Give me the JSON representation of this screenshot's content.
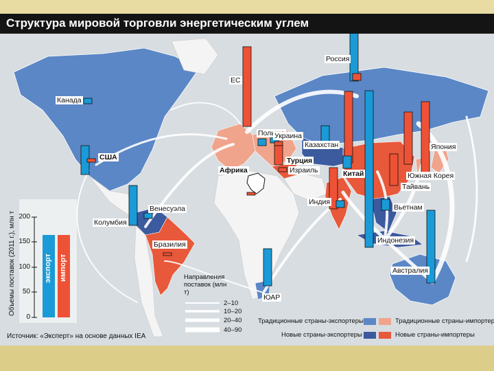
{
  "title": "Структура мировой торговли энергетическим углем",
  "map_labels": {
    "canada": "Канада",
    "usa": "США",
    "venezuela": "Венесуэла",
    "colombia": "Колумбия",
    "brazil": "Бразилия",
    "eu": "ЕС",
    "poland": "Польша",
    "ukraine": "Украина",
    "turkey": "Турция",
    "israel": "Израиль",
    "africa": "Африка",
    "kazakhstan": "Казахстан",
    "russia": "Россия",
    "china": "Китай",
    "india": "Индия",
    "japan": "Япония",
    "korea": "Южная Корея",
    "taiwan": "Тайвань",
    "vietnam": "Вьетнам",
    "indonesia": "Индонезия",
    "australia": "Австралия",
    "sar": "ЮАР"
  },
  "scale": {
    "axis_label": "Объемы поставок (2011 г.), млн т",
    "ticks": [
      "0",
      "50",
      "100",
      "150",
      "200"
    ],
    "export_label": "экспорт",
    "import_label": "импорт"
  },
  "flows_legend": {
    "heading": "Направления поставок (млн т)",
    "items": [
      "2–10",
      "10–20",
      "20–40",
      "40–90"
    ]
  },
  "category_legend": {
    "traditional_exporters": "Традиционные страны-экспортеры",
    "traditional_importers": "Традиционные страны-импортеры",
    "new_exporters": "Новые страны-экспортеры",
    "new_importers": "Новые страны-импортеры"
  },
  "source": "Источник: «Эксперт» на основе данных IEA",
  "colors": {
    "traditional_exporter": "#5b87c6",
    "traditional_importer": "#f0a48c",
    "new_exporter": "#3c5a9e",
    "new_importer": "#e8583a",
    "export_bar": "#1a9ad6",
    "import_bar": "#ee5236",
    "ocean": "#d7dde1",
    "neutral_land": "#f4f4f4"
  }
}
